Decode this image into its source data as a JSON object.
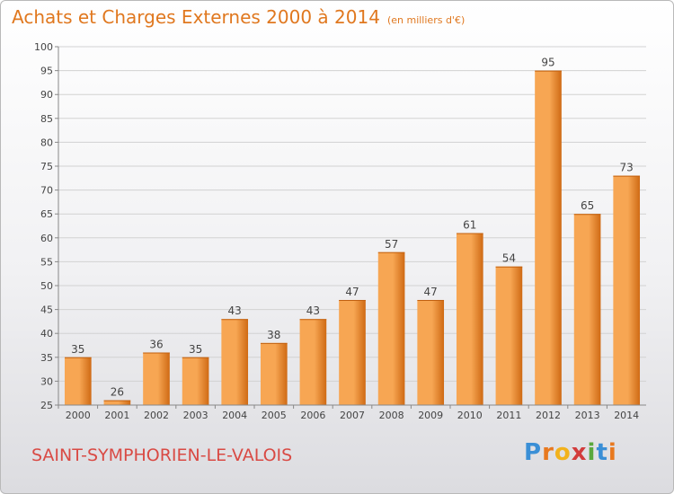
{
  "header": {
    "title": "Achats et Charges Externes 2000 à 2014",
    "unit": "(en milliers d'€)"
  },
  "footer": {
    "commune": "SAINT-SYMPHORIEN-LE-VALOIS",
    "logo_letters": [
      "P",
      "r",
      "o",
      "x",
      "i",
      "t",
      "i"
    ],
    "logo_colors": [
      "#3a8fd6",
      "#e8791f",
      "#f2b21c",
      "#d23c3c",
      "#5aa83c",
      "#3a8fd6",
      "#e8791f"
    ]
  },
  "chart_data": {
    "type": "bar",
    "title": "Achats et Charges Externes 2000 à 2014",
    "categories": [
      "2000",
      "2001",
      "2002",
      "2003",
      "2004",
      "2005",
      "2006",
      "2007",
      "2008",
      "2009",
      "2010",
      "2011",
      "2012",
      "2013",
      "2014"
    ],
    "values": [
      35,
      26,
      36,
      35,
      43,
      38,
      43,
      47,
      57,
      47,
      61,
      54,
      95,
      65,
      73
    ],
    "ylim": [
      25,
      100
    ],
    "yticks": [
      25,
      30,
      35,
      40,
      45,
      50,
      55,
      60,
      65,
      70,
      75,
      80,
      85,
      90,
      95,
      100
    ],
    "grid": true,
    "bar_color_top": "#f7a653",
    "bar_color_bottom": "#cf6a14"
  }
}
